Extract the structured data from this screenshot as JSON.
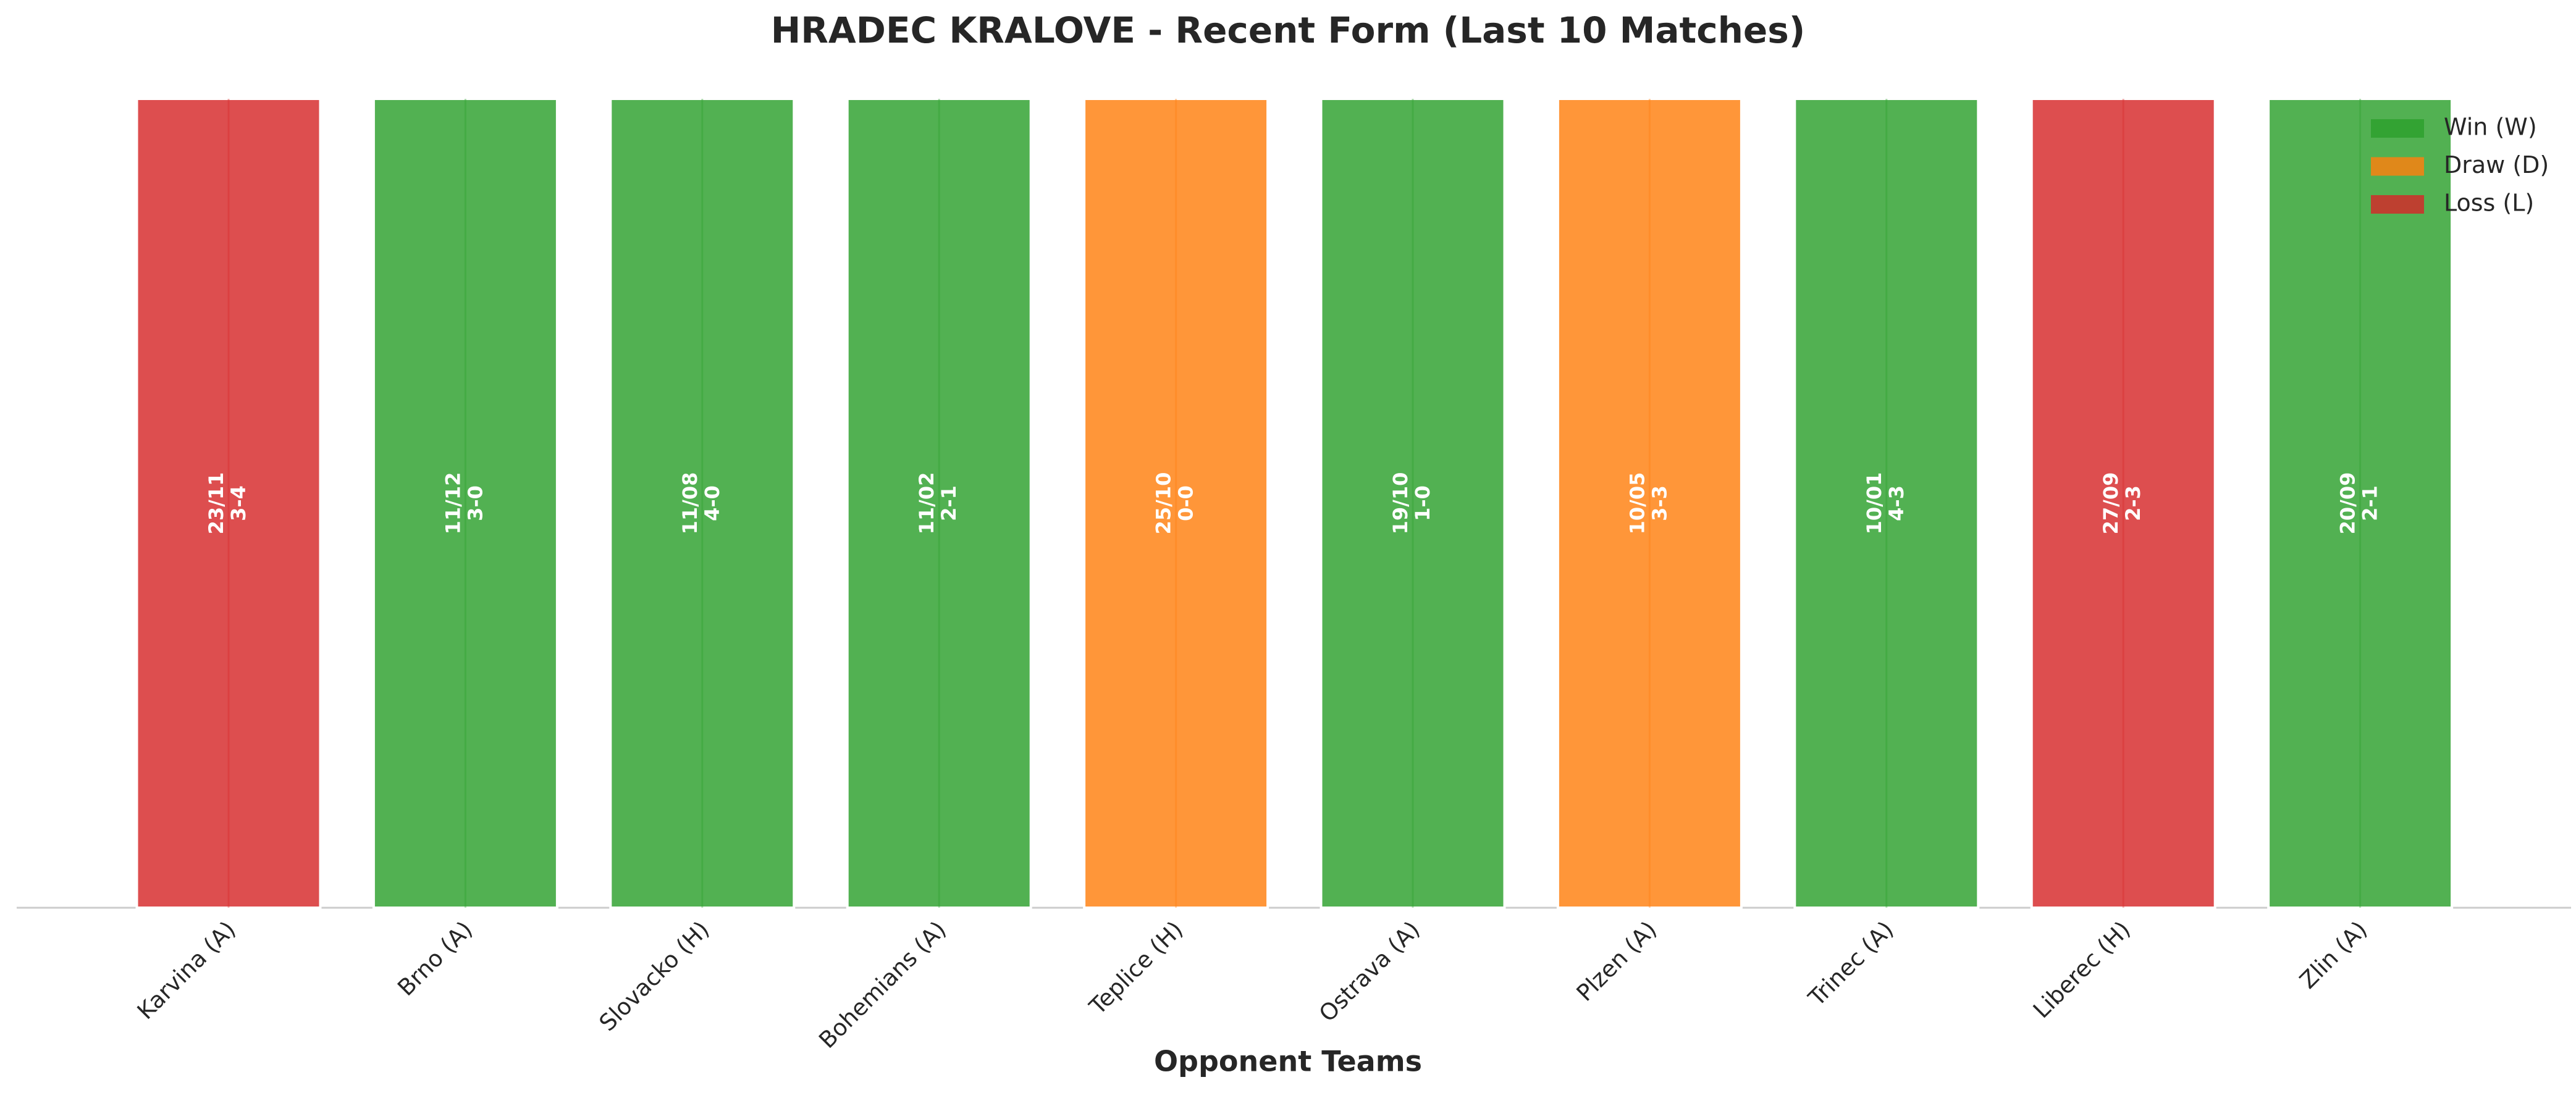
{
  "chart_data": {
    "type": "bar",
    "title": "HRADEC KRALOVE - Recent Form (Last 10 Matches)",
    "x_label": "Opponent Teams",
    "categories": [
      "Karvina (A)",
      "Brno (A)",
      "Slovacko (H)",
      "Bohemians (A)",
      "Teplice (H)",
      "Ostrava (A)",
      "Plzen (A)",
      "Trinec (A)",
      "Liberec (H)",
      "Zlin (A)"
    ],
    "values": [
      1,
      1,
      1,
      1,
      1,
      1,
      1,
      1,
      1,
      1
    ],
    "colors": [
      "#d62728",
      "#2ca02c",
      "#2ca02c",
      "#2ca02c",
      "#ff7f0e",
      "#2ca02c",
      "#ff7f0e",
      "#2ca02c",
      "#d62728",
      "#2ca02c"
    ],
    "dates": [
      "23/11",
      "11/12",
      "11/08",
      "11/02",
      "25/10",
      "19/10",
      "10/05",
      "10/01",
      "27/09",
      "20/09"
    ],
    "scores": [
      "3-4",
      "3-0",
      "4-0",
      "2-1",
      "0-0",
      "1-0",
      "3-3",
      "4-3",
      "2-3",
      "2-1"
    ],
    "ylim": [
      0,
      1.05
    ],
    "legend": [
      {
        "label": "Win (W)",
        "color": "#2ca02c"
      },
      {
        "label": "Draw (D)",
        "color": "#ff7f0e"
      },
      {
        "label": "Loss (L)",
        "color": "#d62728"
      }
    ],
    "legend_position": "upper right"
  }
}
